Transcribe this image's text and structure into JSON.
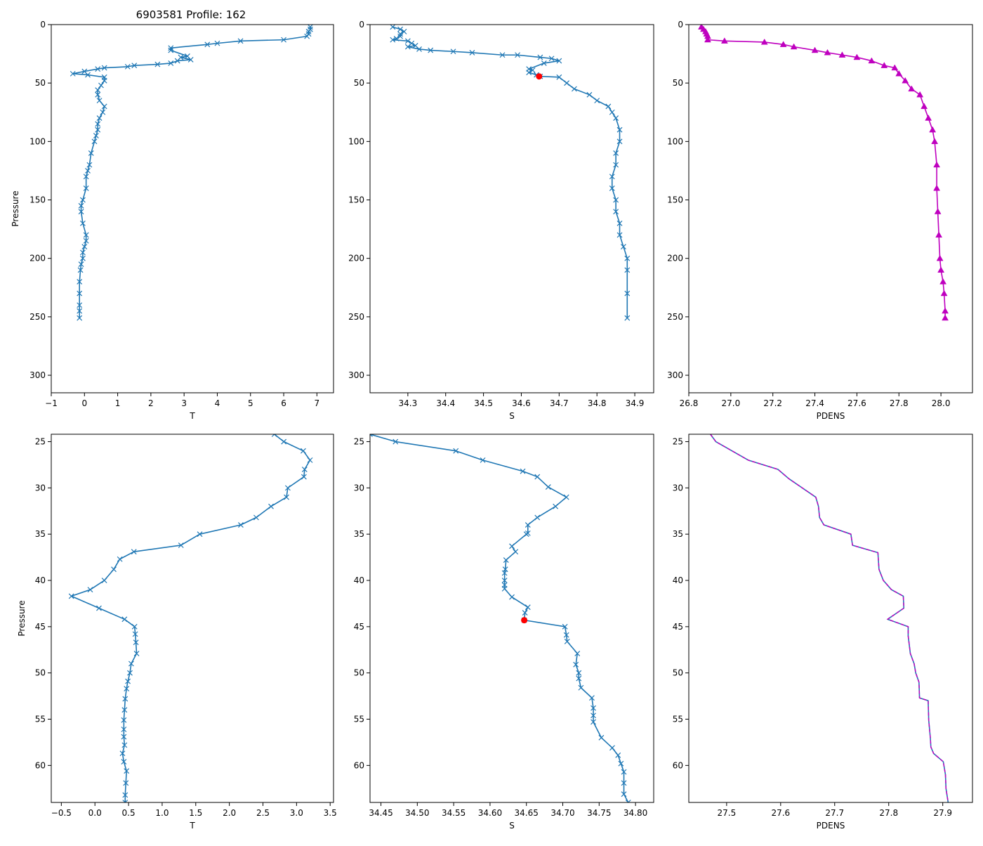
{
  "figure_title": "6903581 Profile: 162",
  "colors": {
    "series": "#1f77b4",
    "density": "#bf00bf",
    "flag": "#ff0000",
    "axis": "#000000"
  },
  "chart_data": [
    {
      "id": "p1",
      "type": "line",
      "marker": "x",
      "color": "#1f77b4",
      "title": "6903581 Profile: 162",
      "xlabel": "T",
      "ylabel": "Pressure",
      "xlim": [
        -1.0,
        7.5
      ],
      "ylim": [
        315,
        0
      ],
      "y_inverted": true,
      "xticks": [
        -1,
        0,
        1,
        2,
        3,
        4,
        5,
        6,
        7
      ],
      "xtick_labels": [
        "−1",
        "0",
        "1",
        "2",
        "3",
        "4",
        "5",
        "6",
        "7"
      ],
      "yticks": [
        0,
        50,
        100,
        150,
        200,
        250,
        300
      ],
      "ytick_labels": [
        "0",
        "50",
        "100",
        "150",
        "200",
        "250",
        "300"
      ],
      "x": [
        6.8,
        6.8,
        6.75,
        6.75,
        6.7,
        6.0,
        4.7,
        4.0,
        3.7,
        2.6,
        2.6,
        3.1,
        2.9,
        3.2,
        2.8,
        2.6,
        2.2,
        1.5,
        1.3,
        0.6,
        0.4,
        0.0,
        -0.35,
        0.1,
        0.6,
        0.6,
        0.5,
        0.4,
        0.4,
        0.45,
        0.6,
        0.55,
        0.45,
        0.4,
        0.4,
        0.35,
        0.3,
        0.2,
        0.15,
        0.1,
        0.05,
        0.05,
        -0.05,
        -0.1,
        -0.1,
        -0.05,
        0.05,
        0.05,
        0.0,
        -0.05,
        -0.05,
        -0.1,
        -0.12,
        -0.15,
        -0.15,
        -0.15,
        -0.15,
        -0.15
      ],
      "y": [
        2,
        4,
        6,
        8,
        10,
        13,
        14,
        16,
        17,
        20,
        22,
        27,
        28,
        30,
        31,
        33,
        34,
        35,
        36,
        37,
        38,
        40,
        42,
        43,
        45,
        48,
        52,
        56,
        60,
        65,
        70,
        75,
        80,
        85,
        90,
        95,
        100,
        110,
        120,
        125,
        130,
        140,
        150,
        155,
        160,
        170,
        180,
        185,
        190,
        195,
        200,
        205,
        210,
        220,
        230,
        240,
        245,
        251
      ]
    },
    {
      "id": "p2",
      "type": "line",
      "marker": "x",
      "color": "#1f77b4",
      "title": "",
      "xlabel": "S",
      "ylabel": "",
      "xlim": [
        34.2,
        34.95
      ],
      "ylim": [
        315,
        0
      ],
      "y_inverted": true,
      "xticks": [
        34.3,
        34.4,
        34.5,
        34.6,
        34.7,
        34.8,
        34.9
      ],
      "xtick_labels": [
        "34.3",
        "34.4",
        "34.5",
        "34.6",
        "34.7",
        "34.8",
        "34.9"
      ],
      "yticks": [
        0,
        50,
        100,
        150,
        200,
        250,
        300
      ],
      "ytick_labels": [
        "0",
        "50",
        "100",
        "150",
        "200",
        "250",
        "300"
      ],
      "x": [
        34.26,
        34.28,
        34.29,
        34.28,
        34.28,
        34.27,
        34.26,
        34.3,
        34.31,
        34.32,
        34.3,
        34.33,
        34.36,
        34.42,
        34.47,
        34.55,
        34.59,
        34.65,
        34.68,
        34.7,
        34.66,
        34.62,
        34.63,
        34.62,
        34.64,
        34.65,
        34.7,
        34.72,
        34.74,
        34.78,
        34.8,
        34.83,
        34.84,
        34.85,
        34.86,
        34.86,
        34.85,
        34.85,
        34.84,
        34.84,
        34.85,
        34.85,
        34.86,
        34.86,
        34.87,
        34.88,
        34.88,
        34.88,
        34.88
      ],
      "y": [
        2,
        4,
        6,
        8,
        10,
        12,
        13,
        14,
        16,
        18,
        19,
        21,
        22,
        23,
        24,
        26,
        26,
        28,
        29,
        31,
        33,
        38,
        39,
        41,
        43,
        44.3,
        45,
        50,
        55,
        60,
        65,
        70,
        75,
        80,
        90,
        100,
        110,
        120,
        130,
        140,
        150,
        160,
        170,
        180,
        190,
        200,
        210,
        230,
        251
      ],
      "flag_point": {
        "x": 34.647,
        "y": 44.3
      }
    },
    {
      "id": "p3",
      "type": "line",
      "marker": "triangle",
      "color": "#bf00bf",
      "title": "",
      "xlabel": "PDENS",
      "ylabel": "",
      "xlim": [
        26.8,
        28.15
      ],
      "ylim": [
        315,
        0
      ],
      "y_inverted": true,
      "xticks": [
        26.8,
        27.0,
        27.2,
        27.4,
        27.6,
        27.8,
        28.0
      ],
      "xtick_labels": [
        "26.8",
        "27.0",
        "27.2",
        "27.4",
        "27.6",
        "27.8",
        "28.0"
      ],
      "yticks": [
        0,
        50,
        100,
        150,
        200,
        250,
        300
      ],
      "ytick_labels": [
        "0",
        "50",
        "100",
        "150",
        "200",
        "250",
        "300"
      ],
      "x": [
        26.86,
        26.87,
        26.88,
        26.885,
        26.89,
        26.89,
        26.97,
        27.16,
        27.25,
        27.3,
        27.4,
        27.46,
        27.53,
        27.6,
        27.67,
        27.73,
        27.78,
        27.8,
        27.83,
        27.86,
        27.9,
        27.92,
        27.94,
        27.96,
        27.97,
        27.98,
        27.98,
        27.985,
        27.99,
        27.995,
        28.0,
        28.01,
        28.015,
        28.02,
        28.02
      ],
      "y": [
        2,
        4,
        6,
        8,
        10,
        13,
        14,
        15,
        17,
        19,
        22,
        24,
        26,
        28,
        31,
        35,
        37,
        42,
        48,
        55,
        60,
        70,
        80,
        90,
        100,
        120,
        140,
        160,
        180,
        200,
        210,
        220,
        230,
        245,
        251
      ]
    },
    {
      "id": "p4",
      "type": "line",
      "marker": "x",
      "color": "#1f77b4",
      "title": "",
      "xlabel": "T",
      "ylabel": "Pressure",
      "xlim": [
        -0.65,
        3.55
      ],
      "ylim": [
        64,
        24.2
      ],
      "y_inverted": true,
      "xticks": [
        -0.5,
        0.0,
        0.5,
        1.0,
        1.5,
        2.0,
        2.5,
        3.0,
        3.5
      ],
      "xtick_labels": [
        "−0.5",
        "0.0",
        "0.5",
        "1.0",
        "1.5",
        "2.0",
        "2.5",
        "3.0",
        "3.5"
      ],
      "yticks": [
        25,
        30,
        35,
        40,
        45,
        50,
        55,
        60
      ],
      "ytick_labels": [
        "25",
        "30",
        "35",
        "40",
        "45",
        "50",
        "55",
        "60"
      ],
      "x": [
        2.67,
        2.81,
        3.1,
        3.2,
        3.12,
        3.11,
        2.87,
        2.85,
        2.62,
        2.4,
        2.17,
        1.56,
        1.28,
        0.58,
        0.37,
        0.28,
        0.14,
        -0.07,
        -0.35,
        0.06,
        0.44,
        0.59,
        0.6,
        0.61,
        0.62,
        0.54,
        0.52,
        0.49,
        0.47,
        0.45,
        0.44,
        0.43,
        0.43,
        0.43,
        0.44,
        0.41,
        0.43,
        0.47,
        0.46,
        0.45,
        0.45
      ],
      "y": [
        24.2,
        25,
        26,
        27,
        28,
        28.8,
        30,
        31,
        32,
        33.2,
        34,
        35,
        36.2,
        36.9,
        37.7,
        38.8,
        40,
        41,
        41.7,
        43,
        44.2,
        45,
        45.8,
        46.7,
        47.9,
        49,
        50,
        50.9,
        51.7,
        52.8,
        54,
        55.1,
        56.1,
        56.9,
        57.8,
        58.7,
        59.6,
        60.6,
        61.9,
        63.2,
        64
      ]
    },
    {
      "id": "p5",
      "type": "line",
      "marker": "x",
      "color": "#1f77b4",
      "title": "",
      "xlabel": "S",
      "ylabel": "",
      "xlim": [
        34.435,
        34.825
      ],
      "ylim": [
        64,
        24.2
      ],
      "y_inverted": true,
      "xticks": [
        34.45,
        34.5,
        34.55,
        34.6,
        34.65,
        34.7,
        34.75,
        34.8
      ],
      "xtick_labels": [
        "34.45",
        "34.50",
        "34.55",
        "34.60",
        "34.65",
        "34.70",
        "34.75",
        "34.80"
      ],
      "yticks": [
        25,
        30,
        35,
        40,
        45,
        50,
        55,
        60
      ],
      "ytick_labels": [
        "25",
        "30",
        "35",
        "40",
        "45",
        "50",
        "55",
        "60"
      ],
      "x": [
        34.435,
        34.47,
        34.553,
        34.59,
        34.645,
        34.665,
        34.68,
        34.705,
        34.69,
        34.665,
        34.652,
        34.652,
        34.65,
        34.63,
        34.635,
        34.622,
        34.621,
        34.62,
        34.62,
        34.62,
        34.62,
        34.63,
        34.652,
        34.648,
        34.647,
        34.703,
        34.705,
        34.706,
        34.72,
        34.718,
        34.722,
        34.722,
        34.725,
        34.74,
        34.742,
        34.742,
        34.742,
        34.753,
        34.768,
        34.776,
        34.78,
        34.784,
        34.784,
        34.784,
        34.79
      ],
      "y": [
        24.2,
        25,
        26,
        27,
        28.2,
        28.8,
        29.9,
        31,
        32,
        33.2,
        34,
        34.9,
        35,
        36.3,
        36.9,
        37.8,
        38.8,
        39.2,
        40,
        40.5,
        40.9,
        41.8,
        42.9,
        43.5,
        44.3,
        45,
        45.9,
        46.6,
        47.9,
        49.1,
        50,
        50.6,
        51.6,
        52.7,
        53.8,
        54.6,
        55.3,
        57,
        58.1,
        58.9,
        59.8,
        60.7,
        61.9,
        63.1,
        64
      ],
      "flag_point": {
        "x": 34.647,
        "y": 44.3
      }
    },
    {
      "id": "p6",
      "type": "line",
      "marker": "none",
      "color": "#1f77b4",
      "overlay_color": "#bf00bf",
      "title": "",
      "xlabel": "PDENS",
      "ylabel": "",
      "xlim": [
        27.43,
        27.955
      ],
      "ylim": [
        64,
        24.2
      ],
      "y_inverted": true,
      "xticks": [
        27.5,
        27.6,
        27.7,
        27.8,
        27.9
      ],
      "xtick_labels": [
        "27.5",
        "27.6",
        "27.7",
        "27.8",
        "27.9"
      ],
      "yticks": [
        25,
        30,
        35,
        40,
        45,
        50,
        55,
        60
      ],
      "ytick_labels": [
        "25",
        "30",
        "35",
        "40",
        "45",
        "50",
        "55",
        "60"
      ],
      "x": [
        27.47,
        27.48,
        27.51,
        27.54,
        27.595,
        27.615,
        27.64,
        27.665,
        27.67,
        27.672,
        27.68,
        27.73,
        27.733,
        27.78,
        27.782,
        27.79,
        27.805,
        27.827,
        27.828,
        27.798,
        27.836,
        27.836,
        27.84,
        27.847,
        27.85,
        27.856,
        27.857,
        27.873,
        27.874,
        27.877,
        27.878,
        27.883,
        27.901,
        27.905,
        27.906,
        27.91
      ],
      "y": [
        24.2,
        25,
        26,
        27,
        28,
        29,
        30,
        31,
        32,
        33.2,
        34,
        35,
        36.2,
        37,
        38.8,
        40,
        41,
        41.7,
        43,
        44.2,
        45,
        46,
        47.9,
        49,
        50,
        51,
        52.7,
        53,
        55.1,
        57,
        58,
        58.7,
        59.6,
        61,
        62.5,
        64
      ],
      "overlay": "dashed"
    }
  ]
}
